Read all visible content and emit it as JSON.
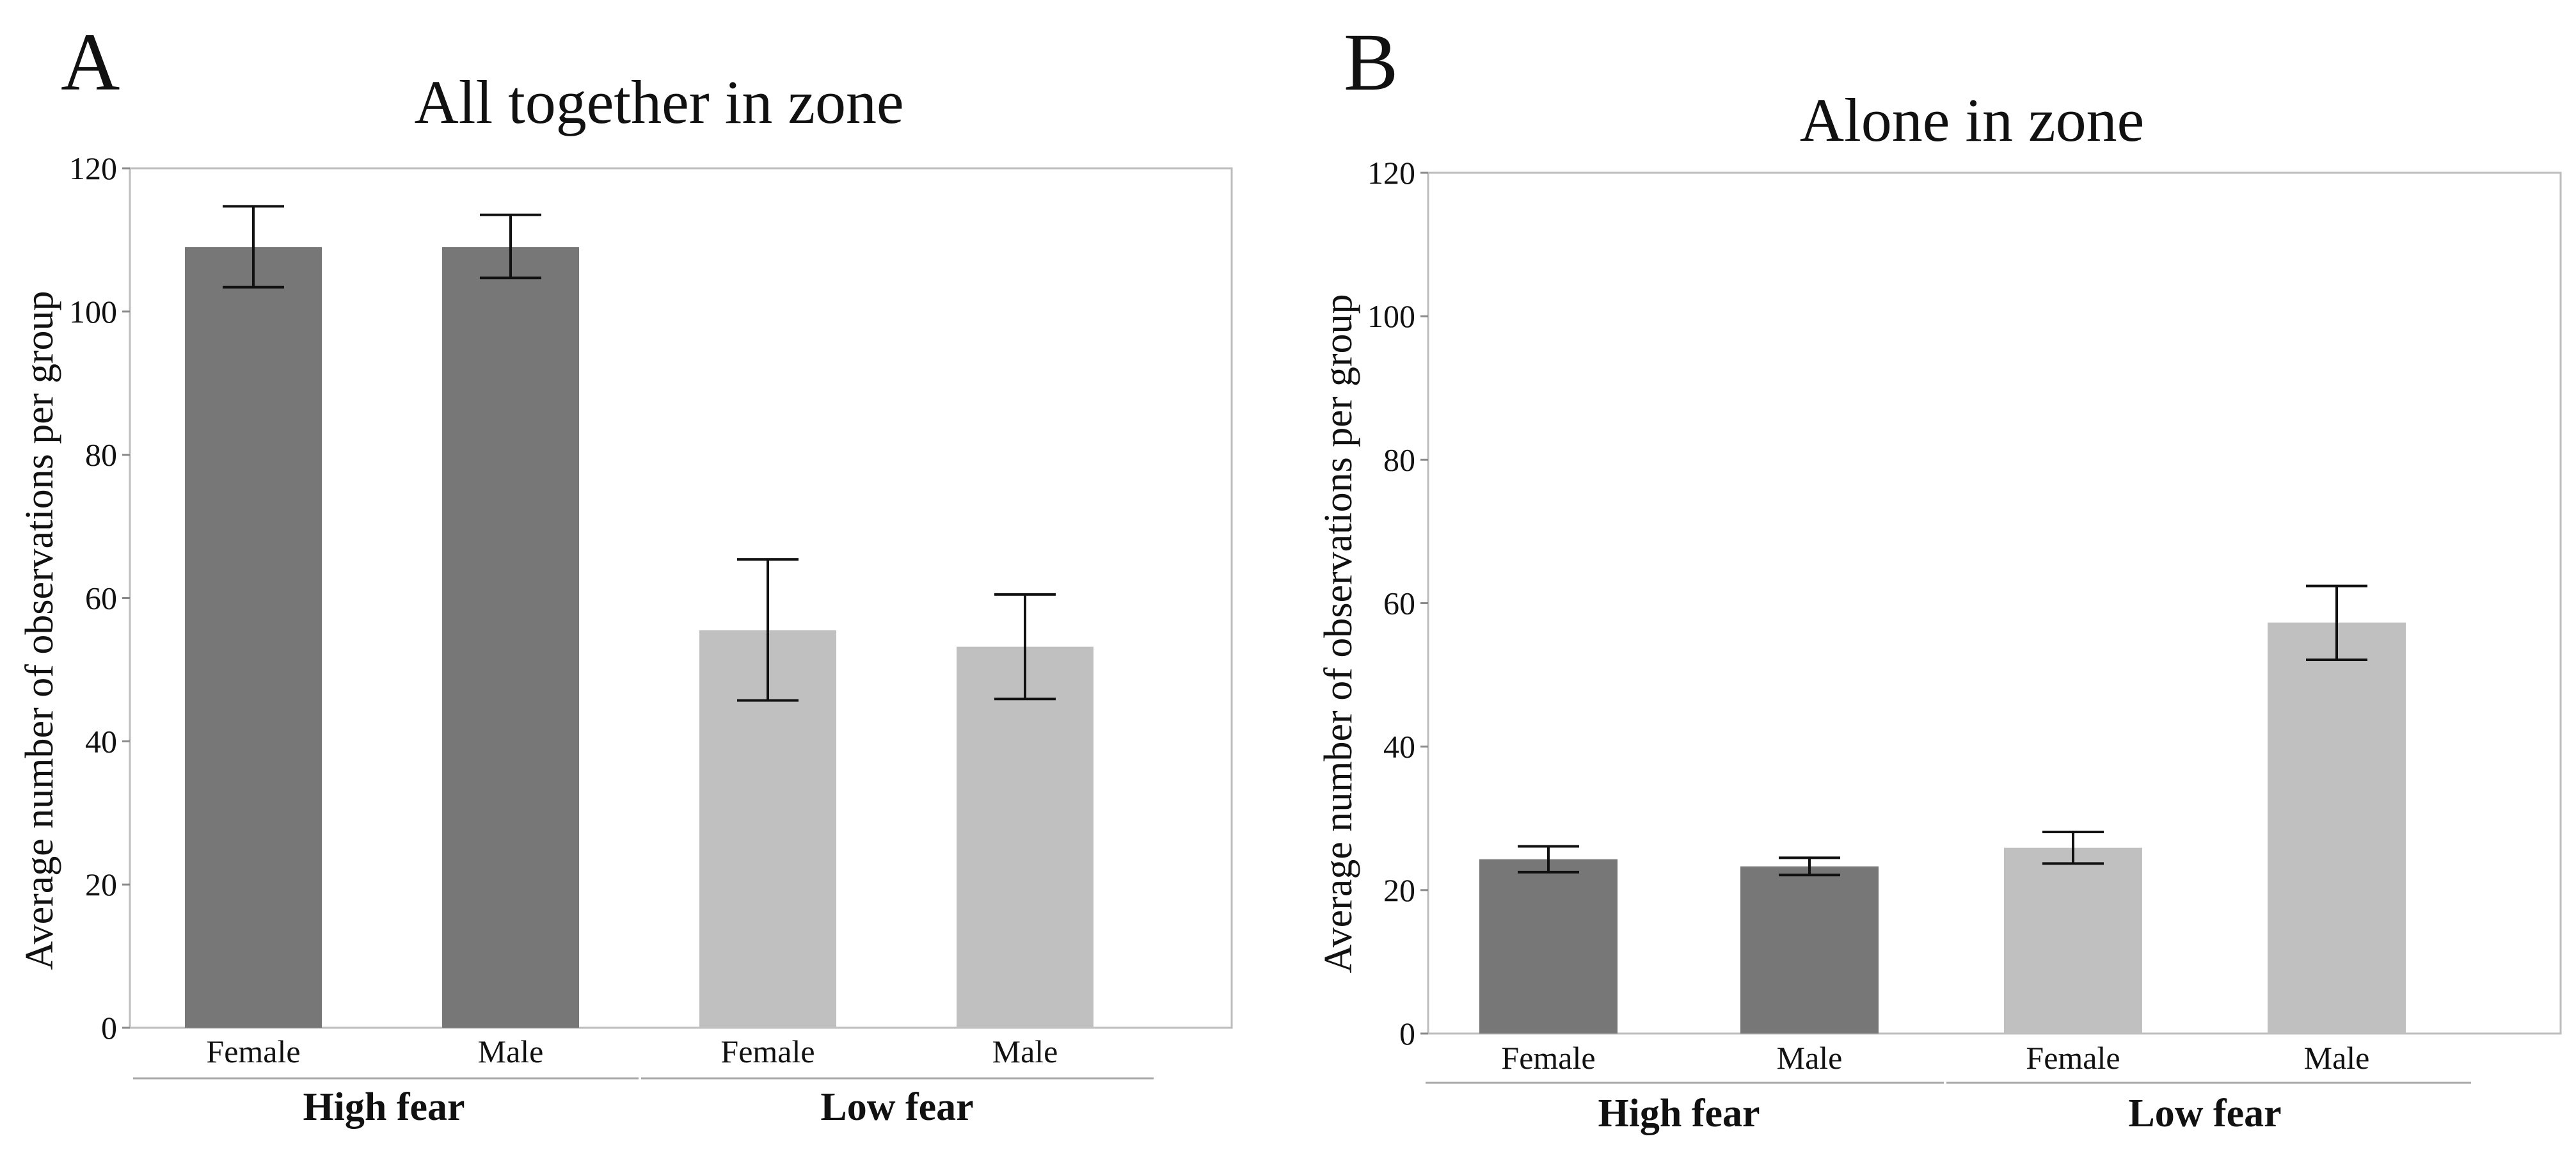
{
  "chart_data": [
    {
      "type": "bar",
      "panel_label": "A",
      "title": "All together in zone",
      "ylabel": "Average number of observations per group",
      "xlabel": "",
      "ylim": [
        0,
        120
      ],
      "yticks": [
        0,
        20,
        40,
        60,
        80,
        100,
        120
      ],
      "grid": false,
      "categories": [
        "Female",
        "Male",
        "Female",
        "Male"
      ],
      "groups": [
        {
          "label": "High fear",
          "categories": [
            0,
            1
          ],
          "color": "#777777"
        },
        {
          "label": "Low fear",
          "categories": [
            2,
            3
          ],
          "color": "#c0c0c0"
        }
      ],
      "values": [
        109,
        109,
        55.5,
        53.2
      ],
      "errors": [
        [
          103.4,
          114.7
        ],
        [
          104.7,
          113.5
        ],
        [
          45.7,
          65.4
        ],
        [
          45.9,
          60.5
        ]
      ]
    },
    {
      "type": "bar",
      "panel_label": "B",
      "title": "Alone in zone",
      "ylabel": "Average number of observations per group",
      "xlabel": "",
      "ylim": [
        0,
        120
      ],
      "yticks": [
        0,
        20,
        40,
        60,
        80,
        100,
        120
      ],
      "grid": false,
      "categories": [
        "Female",
        "Male",
        "Female",
        "Male"
      ],
      "groups": [
        {
          "label": "High fear",
          "categories": [
            0,
            1
          ],
          "color": "#777777"
        },
        {
          "label": "Low fear",
          "categories": [
            2,
            3
          ],
          "color": "#c0c0c0"
        }
      ],
      "values": [
        24.3,
        23.3,
        25.9,
        57.3
      ],
      "errors": [
        [
          22.5,
          26.1
        ],
        [
          22.1,
          24.5
        ],
        [
          23.7,
          28.1
        ],
        [
          52.1,
          62.4
        ]
      ]
    }
  ]
}
